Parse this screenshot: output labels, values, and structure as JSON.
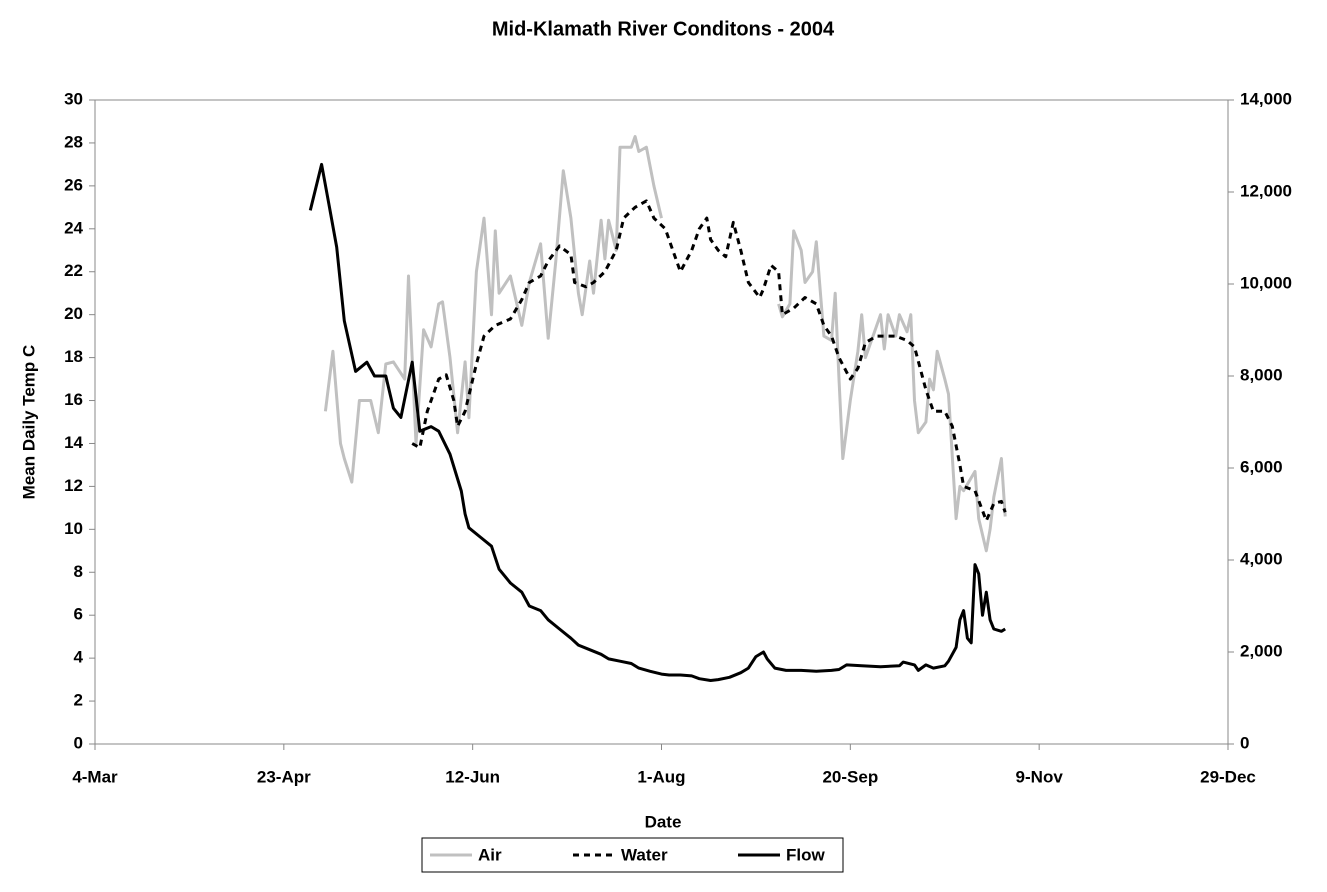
{
  "chart_data": {
    "type": "line",
    "title": "Mid-Klamath River Conditons - 2004",
    "xlabel": "Date",
    "ylabel": "Mean Daily Temp C",
    "xlim": [
      "4-Mar",
      "29-Dec"
    ],
    "xticks": [
      "4-Mar",
      "23-Apr",
      "12-Jun",
      "1-Aug",
      "20-Sep",
      "9-Nov",
      "29-Dec"
    ],
    "ylim": [
      0,
      30
    ],
    "yticks": [
      0,
      2,
      4,
      6,
      8,
      10,
      12,
      14,
      16,
      18,
      20,
      22,
      24,
      26,
      28,
      30
    ],
    "y2lim": [
      0,
      14000
    ],
    "y2ticks": [
      0,
      {
        "value": 2000,
        "label": "2,000"
      },
      {
        "value": 4000,
        "label": "4,000"
      },
      {
        "value": 6000,
        "label": "6,000"
      },
      {
        "value": 8000,
        "label": "8,000"
      },
      {
        "value": 10000,
        "label": "10,000"
      },
      {
        "value": 12000,
        "label": "12,000"
      },
      {
        "value": 14000,
        "label": "14,000"
      }
    ],
    "grid": false,
    "legend": "bottom",
    "series": [
      {
        "name": "Air",
        "color": "#c0c0c0",
        "line_style": "solid",
        "axis": "y",
        "x": [
          "4-May",
          "6-May",
          "8-May",
          "9-May",
          "11-May",
          "13-May",
          "16-May",
          "18-May",
          "20-May",
          "22-May",
          "25-May",
          "26-May",
          "28-May",
          "30-May",
          "1-Jun",
          "3-Jun",
          "4-Jun",
          "6-Jun",
          "8-Jun",
          "10-Jun",
          "11-Jun",
          "13-Jun",
          "15-Jun",
          "17-Jun",
          "18-Jun",
          "19-Jun",
          "22-Jun",
          "25-Jun",
          "27-Jun",
          "30-Jun",
          "2-Jul",
          "4-Jul",
          "6-Jul",
          "8-Jul",
          "10-Jul",
          "11-Jul",
          "13-Jul",
          "14-Jul",
          "16-Jul",
          "17-Jul",
          "18-Jul",
          "20-Jul",
          "21-Jul",
          "24-Jul",
          "25-Jul",
          "26-Jul",
          "28-Jul",
          "30-Jul",
          "1-Aug",
          "16-Aug",
          "1-Sep",
          "2-Sep",
          "4-Sep",
          "5-Sep",
          "7-Sep",
          "8-Sep",
          "10-Sep",
          "11-Sep",
          "13-Sep",
          "15-Sep",
          "16-Sep",
          "17-Sep",
          "18-Sep",
          "20-Sep",
          "22-Sep",
          "23-Sep",
          "24-Sep",
          "26-Sep",
          "28-Sep",
          "29-Sep",
          "30-Sep",
          "2-Oct",
          "3-Oct",
          "5-Oct",
          "6-Oct",
          "7-Oct",
          "8-Oct",
          "10-Oct",
          "11-Oct",
          "12-Oct",
          "13-Oct",
          "15-Oct",
          "16-Oct",
          "18-Oct",
          "19-Oct",
          "20-Oct",
          "23-Oct",
          "24-Oct",
          "26-Oct",
          "27-Oct",
          "28-Oct",
          "30-Oct",
          "31-Oct"
        ],
        "values": [
          15.5,
          18.3,
          14,
          13.3,
          12.2,
          16,
          16,
          14.5,
          17.7,
          17.8,
          17,
          21.8,
          14,
          19.3,
          18.5,
          20.5,
          20.6,
          18,
          14.5,
          17.8,
          15.2,
          22,
          24.5,
          20,
          23.9,
          21,
          21.8,
          19.5,
          21.5,
          23.3,
          18.9,
          22.5,
          26.7,
          24.5,
          21,
          20,
          22.5,
          21,
          24.4,
          22.6,
          24.4,
          23,
          27.8,
          27.8,
          28.3,
          27.6,
          27.8,
          26,
          24.5,
          null,
          20.5,
          19.9,
          20.5,
          23.9,
          23,
          21.5,
          22,
          23.4,
          19,
          18.8,
          21,
          17,
          13.3,
          16,
          18.3,
          20,
          18,
          19,
          20,
          18.4,
          20,
          19,
          20,
          19.2,
          20,
          16,
          14.5,
          15,
          17,
          16.5,
          18.3,
          17,
          16.3,
          10.5,
          12,
          11.8,
          12.7,
          10.5,
          9,
          10,
          11.5,
          13.3,
          10.6
        ]
      },
      {
        "name": "Water",
        "color": "#000000",
        "line_style": "dashed",
        "axis": "y",
        "x": [
          "27-May",
          "29-May",
          "31-May",
          "3-Jun",
          "5-Jun",
          "7-Jun",
          "8-Jun",
          "10-Jun",
          "13-Jun",
          "15-Jun",
          "18-Jun",
          "22-Jun",
          "25-Jun",
          "27-Jun",
          "30-Jun",
          "2-Jul",
          "5-Jul",
          "8-Jul",
          "9-Jul",
          "12-Jul",
          "14-Jul",
          "17-Jul",
          "20-Jul",
          "22-Jul",
          "25-Jul",
          "28-Jul",
          "30-Jul",
          "2-Aug",
          "4-Aug",
          "6-Aug",
          "9-Aug",
          "11-Aug",
          "13-Aug",
          "14-Aug",
          "16-Aug",
          "18-Aug",
          "20-Aug",
          "22-Aug",
          "24-Aug",
          "27-Aug",
          "28-Aug",
          "30-Aug",
          "1-Sep",
          "2-Sep",
          "5-Sep",
          "8-Sep",
          "11-Sep",
          "13-Sep",
          "15-Sep",
          "17-Sep",
          "20-Sep",
          "22-Sep",
          "24-Sep",
          "27-Sep",
          "29-Sep",
          "2-Oct",
          "5-Oct",
          "7-Oct",
          "10-Oct",
          "12-Oct",
          "15-Oct",
          "17-Oct",
          "19-Oct",
          "20-Oct",
          "23-Oct",
          "26-Oct",
          "28-Oct",
          "30-Oct",
          "31-Oct"
        ],
        "values": [
          14,
          13.8,
          15.5,
          17,
          17.2,
          16,
          14.8,
          15.5,
          17.7,
          19,
          19.5,
          19.8,
          20.7,
          21.5,
          21.8,
          22.5,
          23.2,
          22.8,
          21.5,
          21.3,
          21.5,
          22,
          23,
          24.5,
          25,
          25.3,
          24.5,
          24,
          23,
          22,
          23,
          24,
          24.5,
          23.5,
          23,
          22.7,
          24.3,
          23,
          21.5,
          20.8,
          21.2,
          22.3,
          22,
          20,
          20.3,
          20.8,
          20.5,
          19.5,
          19,
          18,
          17,
          17.5,
          18.7,
          19,
          19,
          19,
          18.8,
          18.5,
          16.5,
          15.5,
          15.5,
          14.8,
          13,
          12,
          11.8,
          10.4,
          11.2,
          11.3,
          10.8
        ]
      },
      {
        "name": "Flow",
        "color": "#000000",
        "line_style": "solid",
        "axis": "y2",
        "x": [
          "30-Apr",
          "3-May",
          "5-May",
          "7-May",
          "9-May",
          "12-May",
          "15-May",
          "17-May",
          "20-May",
          "22-May",
          "24-May",
          "27-May",
          "29-May",
          "1-Jun",
          "3-Jun",
          "6-Jun",
          "9-Jun",
          "10-Jun",
          "11-Jun",
          "14-Jun",
          "17-Jun",
          "19-Jun",
          "22-Jun",
          "25-Jun",
          "27-Jun",
          "30-Jun",
          "2-Jul",
          "5-Jul",
          "8-Jul",
          "10-Jul",
          "13-Jul",
          "16-Jul",
          "18-Jul",
          "21-Jul",
          "24-Jul",
          "26-Jul",
          "29-Jul",
          "1-Aug",
          "3-Aug",
          "6-Aug",
          "9-Aug",
          "11-Aug",
          "14-Aug",
          "16-Aug",
          "19-Aug",
          "22-Aug",
          "24-Aug",
          "26-Aug",
          "28-Aug",
          "29-Aug",
          "31-Aug",
          "3-Sep",
          "7-Sep",
          "11-Sep",
          "15-Sep",
          "17-Sep",
          "19-Sep",
          "23-Sep",
          "28-Sep",
          "3-Oct",
          "4-Oct",
          "7-Oct",
          "8-Oct",
          "10-Oct",
          "12-Oct",
          "15-Oct",
          "16-Oct",
          "18-Oct",
          "19-Oct",
          "20-Oct",
          "21-Oct",
          "22-Oct",
          "23-Oct",
          "24-Oct",
          "25-Oct",
          "26-Oct",
          "27-Oct",
          "28-Oct",
          "30-Oct",
          "31-Oct"
        ],
        "values": [
          11600,
          12600,
          11700,
          10800,
          9200,
          8100,
          8300,
          8000,
          8000,
          7300,
          7100,
          8300,
          6800,
          6900,
          6800,
          6300,
          5500,
          5000,
          4700,
          4500,
          4300,
          3800,
          3500,
          3300,
          3000,
          2900,
          2700,
          2500,
          2300,
          2150,
          2050,
          1950,
          1850,
          1800,
          1750,
          1650,
          1580,
          1520,
          1500,
          1500,
          1480,
          1420,
          1380,
          1400,
          1450,
          1550,
          1650,
          1900,
          2000,
          1850,
          1650,
          1600,
          1600,
          1580,
          1600,
          1620,
          1720,
          1700,
          1680,
          1700,
          1780,
          1720,
          1600,
          1720,
          1650,
          1700,
          1800,
          2100,
          2700,
          2900,
          2300,
          2200,
          3900,
          3700,
          2800,
          3300,
          2700,
          2500,
          2450,
          2500
        ]
      }
    ]
  }
}
